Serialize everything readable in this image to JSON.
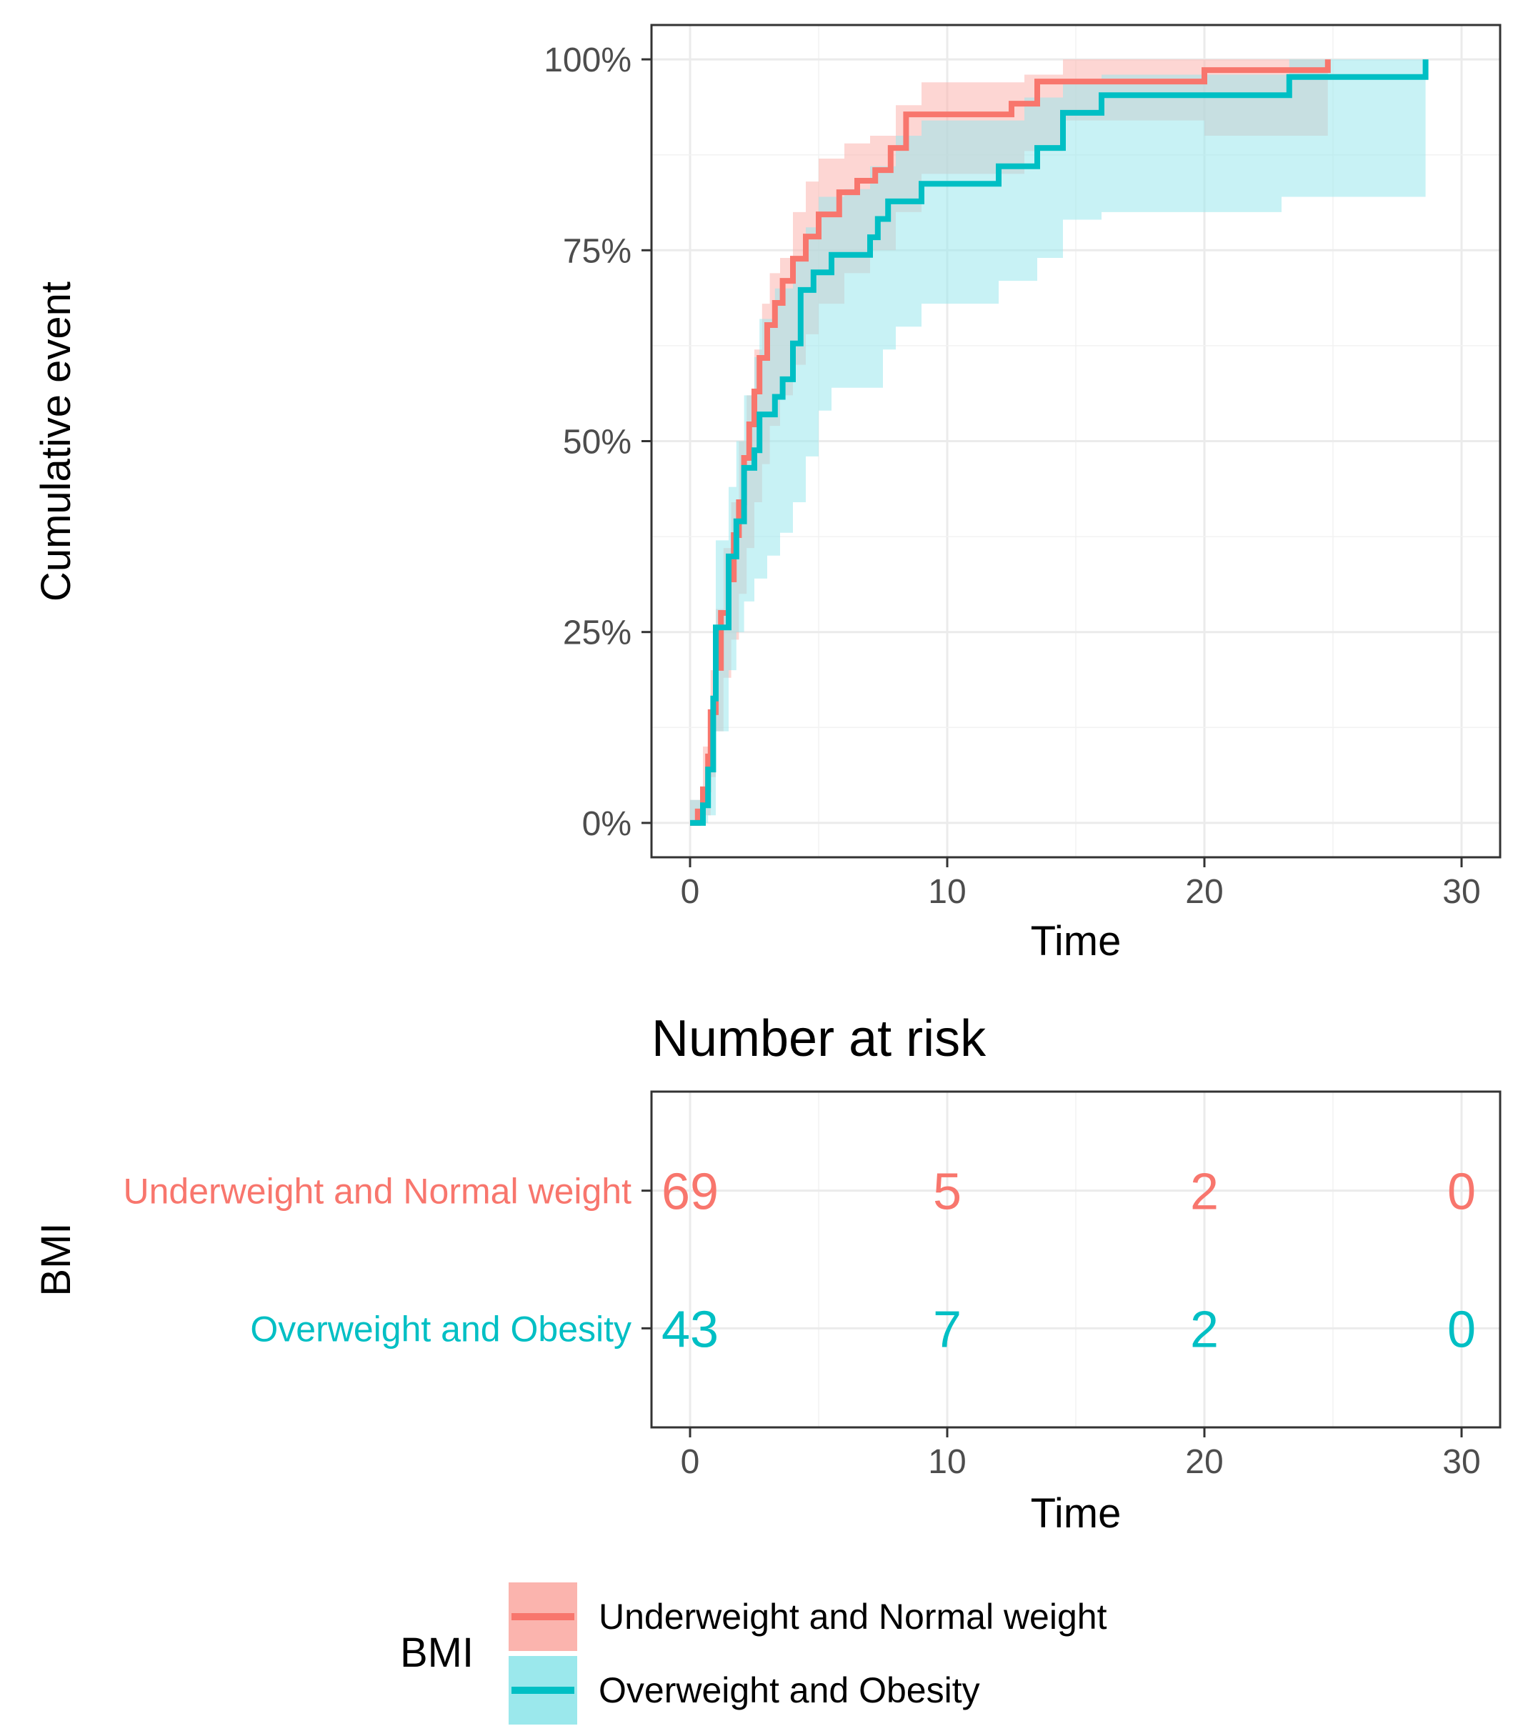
{
  "chart_data": [
    {
      "type": "line",
      "subtype": "cumulative-incidence-step",
      "title": "",
      "xlabel": "Time",
      "ylabel": "Cumulative event",
      "xlim": [
        -1.5,
        31.5
      ],
      "ylim": [
        -0.045,
        1.045
      ],
      "xticks": [
        0,
        10,
        20,
        30
      ],
      "yticks": [
        0,
        0.25,
        0.5,
        0.75,
        1.0
      ],
      "ytick_labels": [
        "0%",
        "25%",
        "50%",
        "75%",
        "100%"
      ],
      "grid": true,
      "series": [
        {
          "name": "Underweight and Normal weight",
          "color": "#F8766D",
          "band_color": "#FBB4AE",
          "steps": [
            [
              0,
              0.0
            ],
            [
              0.3,
              0.015
            ],
            [
              0.5,
              0.044
            ],
            [
              0.7,
              0.087
            ],
            [
              0.8,
              0.145
            ],
            [
              1.0,
              0.203
            ],
            [
              1.2,
              0.275
            ],
            [
              1.5,
              0.319
            ],
            [
              1.7,
              0.377
            ],
            [
              1.9,
              0.42
            ],
            [
              2.1,
              0.478
            ],
            [
              2.3,
              0.522
            ],
            [
              2.5,
              0.565
            ],
            [
              2.7,
              0.609
            ],
            [
              3.0,
              0.652
            ],
            [
              3.3,
              0.681
            ],
            [
              3.6,
              0.71
            ],
            [
              4.0,
              0.739
            ],
            [
              4.5,
              0.768
            ],
            [
              5.0,
              0.797
            ],
            [
              5.8,
              0.826
            ],
            [
              6.5,
              0.841
            ],
            [
              7.2,
              0.855
            ],
            [
              7.8,
              0.884
            ],
            [
              8.4,
              0.928
            ],
            [
              9.0,
              0.928
            ],
            [
              12.5,
              0.942
            ],
            [
              13.5,
              0.971
            ],
            [
              18.0,
              0.971
            ],
            [
              20.0,
              0.986
            ],
            [
              24.8,
              1.0
            ]
          ],
          "end": 24.8,
          "ci_lower": [
            [
              0,
              0.0
            ],
            [
              0.5,
              0.01
            ],
            [
              0.8,
              0.06
            ],
            [
              1.0,
              0.12
            ],
            [
              1.3,
              0.19
            ],
            [
              1.6,
              0.24
            ],
            [
              1.9,
              0.3
            ],
            [
              2.2,
              0.36
            ],
            [
              2.5,
              0.42
            ],
            [
              2.8,
              0.47
            ],
            [
              3.1,
              0.52
            ],
            [
              3.5,
              0.56
            ],
            [
              4.0,
              0.6
            ],
            [
              4.5,
              0.64
            ],
            [
              5.0,
              0.68
            ],
            [
              6.0,
              0.72
            ],
            [
              7.0,
              0.75
            ],
            [
              8.0,
              0.8
            ],
            [
              9.0,
              0.85
            ],
            [
              13.0,
              0.88
            ],
            [
              14.5,
              0.92
            ],
            [
              17.0,
              0.92
            ],
            [
              20.0,
              0.9
            ],
            [
              24.8,
              0.9
            ]
          ],
          "ci_upper": [
            [
              0,
              0.03
            ],
            [
              0.5,
              0.1
            ],
            [
              0.8,
              0.2
            ],
            [
              1.0,
              0.28
            ],
            [
              1.3,
              0.36
            ],
            [
              1.6,
              0.42
            ],
            [
              1.9,
              0.5
            ],
            [
              2.2,
              0.56
            ],
            [
              2.5,
              0.62
            ],
            [
              2.8,
              0.68
            ],
            [
              3.1,
              0.72
            ],
            [
              3.5,
              0.74
            ],
            [
              4.0,
              0.8
            ],
            [
              4.5,
              0.84
            ],
            [
              5.0,
              0.87
            ],
            [
              6.0,
              0.89
            ],
            [
              7.0,
              0.9
            ],
            [
              8.0,
              0.94
            ],
            [
              9.0,
              0.97
            ],
            [
              13.0,
              0.98
            ],
            [
              14.5,
              1.0
            ],
            [
              24.8,
              1.0
            ]
          ]
        },
        {
          "name": "Overweight and Obesity",
          "color": "#00BFC4",
          "band_color": "#9BE8EC",
          "steps": [
            [
              0,
              0.0
            ],
            [
              0.5,
              0.023
            ],
            [
              0.7,
              0.07
            ],
            [
              0.9,
              0.163
            ],
            [
              1.0,
              0.256
            ],
            [
              1.5,
              0.349
            ],
            [
              1.8,
              0.395
            ],
            [
              2.1,
              0.465
            ],
            [
              2.5,
              0.488
            ],
            [
              2.7,
              0.535
            ],
            [
              3.3,
              0.558
            ],
            [
              3.6,
              0.581
            ],
            [
              4.0,
              0.628
            ],
            [
              4.3,
              0.698
            ],
            [
              4.8,
              0.721
            ],
            [
              5.5,
              0.744
            ],
            [
              7.0,
              0.767
            ],
            [
              7.3,
              0.791
            ],
            [
              7.7,
              0.814
            ],
            [
              9.0,
              0.837
            ],
            [
              12.0,
              0.86
            ],
            [
              13.5,
              0.884
            ],
            [
              14.5,
              0.93
            ],
            [
              16.0,
              0.953
            ],
            [
              23.3,
              0.977
            ],
            [
              28.6,
              1.0
            ]
          ],
          "end": 28.6,
          "ci_lower": [
            [
              0,
              0.0
            ],
            [
              0.7,
              0.01
            ],
            [
              1.0,
              0.12
            ],
            [
              1.5,
              0.2
            ],
            [
              1.8,
              0.25
            ],
            [
              2.1,
              0.29
            ],
            [
              2.5,
              0.32
            ],
            [
              3.0,
              0.35
            ],
            [
              3.5,
              0.38
            ],
            [
              4.0,
              0.42
            ],
            [
              4.5,
              0.48
            ],
            [
              5.0,
              0.54
            ],
            [
              5.5,
              0.57
            ],
            [
              7.5,
              0.62
            ],
            [
              8.0,
              0.65
            ],
            [
              9.0,
              0.68
            ],
            [
              12.0,
              0.71
            ],
            [
              13.5,
              0.74
            ],
            [
              14.5,
              0.79
            ],
            [
              16.0,
              0.8
            ],
            [
              23.0,
              0.82
            ],
            [
              28.6,
              0.84
            ]
          ],
          "ci_upper": [
            [
              0,
              0.03
            ],
            [
              0.7,
              0.13
            ],
            [
              1.0,
              0.37
            ],
            [
              1.5,
              0.44
            ],
            [
              1.8,
              0.5
            ],
            [
              2.1,
              0.56
            ],
            [
              2.5,
              0.61
            ],
            [
              2.7,
              0.66
            ],
            [
              3.3,
              0.7
            ],
            [
              4.0,
              0.74
            ],
            [
              4.5,
              0.78
            ],
            [
              5.0,
              0.82
            ],
            [
              6.0,
              0.83
            ],
            [
              7.0,
              0.86
            ],
            [
              8.0,
              0.9
            ],
            [
              9.0,
              0.92
            ],
            [
              13.0,
              0.95
            ],
            [
              14.5,
              0.97
            ],
            [
              16.0,
              0.98
            ],
            [
              23.3,
              1.0
            ],
            [
              28.6,
              1.0
            ]
          ]
        }
      ]
    },
    {
      "type": "table",
      "title": "Number at risk",
      "xlabel": "Time",
      "ylabel": "BMI",
      "xlim": [
        -1.5,
        31.5
      ],
      "xticks": [
        0,
        10,
        20,
        30
      ],
      "rows": [
        {
          "label": "Underweight and Normal weight",
          "color": "#F8766D",
          "values": [
            69,
            5,
            2,
            0
          ]
        },
        {
          "label": "Overweight and Obesity",
          "color": "#00BFC4",
          "values": [
            43,
            7,
            2,
            0
          ]
        }
      ]
    }
  ],
  "legend": {
    "title": "BMI",
    "items": [
      {
        "label": "Underweight and Normal weight",
        "color": "#F8766D",
        "band_color": "#FBB4AE"
      },
      {
        "label": "Overweight and Obesity",
        "color": "#00BFC4",
        "band_color": "#9BE8EC"
      }
    ]
  }
}
